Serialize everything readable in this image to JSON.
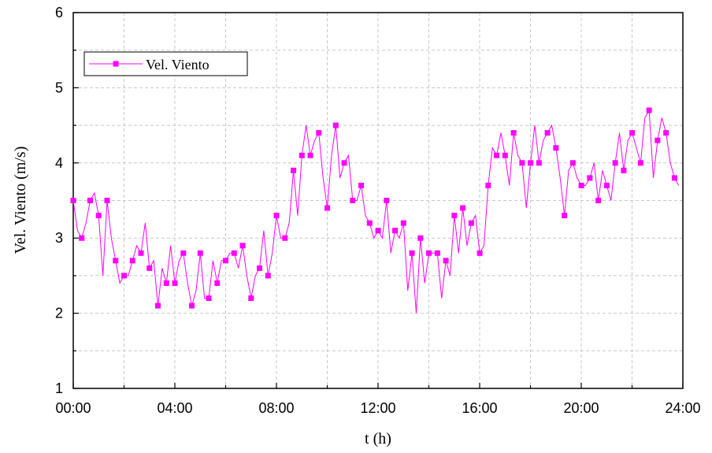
{
  "chart_data": {
    "type": "line",
    "xlabel": "t (h)",
    "ylabel": "Vel. Viento (m/s)",
    "x_unit": "hours",
    "xlim": [
      0,
      24
    ],
    "ylim": [
      1,
      6
    ],
    "x_tick_values": [
      0,
      4,
      8,
      12,
      16,
      20,
      24
    ],
    "x_tick_labels": [
      "00:00",
      "04:00",
      "08:00",
      "12:00",
      "16:00",
      "20:00",
      "24:00"
    ],
    "y_ticks": [
      1,
      2,
      3,
      4,
      5,
      6
    ],
    "grid": true,
    "legend_position": "top-left",
    "series": [
      {
        "name": "Vel. Viento",
        "color": "#ff00ff",
        "marker": "square",
        "marker_step": 2,
        "x_step": 0.1667,
        "values": [
          3.5,
          3.1,
          3.0,
          3.2,
          3.5,
          3.6,
          3.3,
          2.5,
          3.5,
          3.0,
          2.7,
          2.4,
          2.5,
          2.5,
          2.7,
          2.9,
          2.8,
          3.2,
          2.6,
          2.7,
          2.1,
          2.6,
          2.4,
          2.9,
          2.4,
          2.7,
          2.8,
          2.4,
          2.1,
          2.3,
          2.8,
          2.2,
          2.2,
          2.7,
          2.4,
          2.7,
          2.7,
          2.8,
          2.8,
          2.6,
          2.9,
          2.5,
          2.2,
          2.5,
          2.6,
          3.1,
          2.5,
          2.8,
          3.3,
          3.0,
          3.0,
          3.2,
          3.9,
          3.3,
          4.1,
          4.5,
          4.1,
          4.3,
          4.4,
          3.8,
          3.4,
          4.1,
          4.5,
          3.8,
          4.0,
          4.1,
          3.5,
          3.5,
          3.7,
          3.3,
          3.2,
          3.0,
          3.1,
          3.0,
          3.5,
          2.8,
          3.1,
          3.0,
          3.2,
          2.3,
          2.8,
          2.0,
          3.0,
          2.4,
          2.8,
          2.8,
          2.8,
          2.2,
          2.7,
          2.5,
          3.3,
          2.8,
          3.4,
          2.9,
          3.2,
          3.3,
          2.8,
          2.9,
          3.7,
          4.2,
          4.1,
          4.4,
          4.1,
          3.7,
          4.4,
          4.1,
          4.0,
          3.4,
          4.0,
          4.5,
          4.0,
          4.3,
          4.4,
          4.5,
          4.2,
          3.8,
          3.3,
          3.9,
          4.0,
          3.8,
          3.7,
          3.7,
          3.8,
          4.0,
          3.5,
          3.9,
          3.7,
          3.5,
          4.0,
          4.4,
          3.9,
          4.3,
          4.4,
          4.2,
          4.0,
          4.6,
          4.7,
          3.8,
          4.3,
          4.6,
          4.4,
          4.0,
          3.8,
          3.7
        ]
      }
    ]
  }
}
